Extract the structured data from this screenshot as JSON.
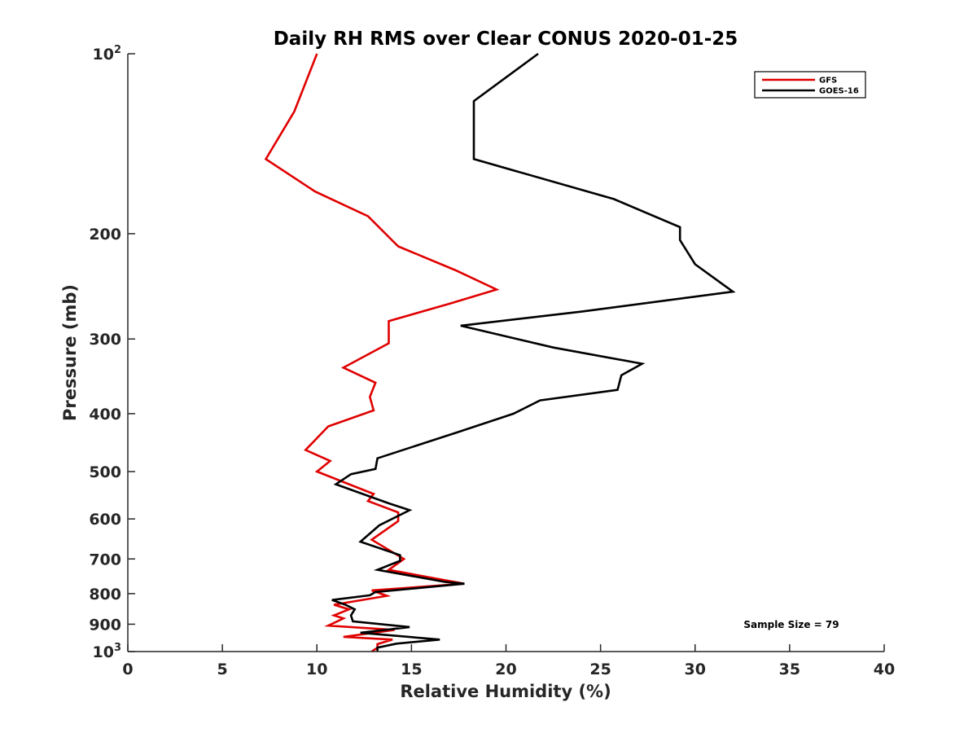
{
  "chart_data": {
    "type": "line",
    "title": "Daily RH RMS over Clear CONUS 2020-01-25",
    "xlabel": "Relative Humidity (%)",
    "ylabel": "Pressure (mb)",
    "xlim": [
      0,
      40
    ],
    "ylim": [
      100,
      1000
    ],
    "y_scale": "log",
    "y_reversed": true,
    "xticks": [
      0,
      5,
      10,
      15,
      20,
      25,
      30,
      35,
      40
    ],
    "yticks": [
      {
        "value": 100,
        "label": "10",
        "sup": "2"
      },
      {
        "value": 200,
        "label": "200",
        "sup": ""
      },
      {
        "value": 300,
        "label": "300",
        "sup": ""
      },
      {
        "value": 400,
        "label": "400",
        "sup": ""
      },
      {
        "value": 500,
        "label": "500",
        "sup": ""
      },
      {
        "value": 600,
        "label": "600",
        "sup": ""
      },
      {
        "value": 700,
        "label": "700",
        "sup": ""
      },
      {
        "value": 800,
        "label": "800",
        "sup": ""
      },
      {
        "value": 900,
        "label": "900",
        "sup": ""
      },
      {
        "value": 1000,
        "label": "10",
        "sup": "3"
      }
    ],
    "grid": false,
    "legend_position": "top-right",
    "annotation": "Sample Size = 79",
    "series": [
      {
        "name": "GFS",
        "color": "#e00000",
        "points": [
          [
            10.0,
            100
          ],
          [
            8.8,
            125
          ],
          [
            7.3,
            150
          ],
          [
            9.9,
            170
          ],
          [
            12.7,
            187
          ],
          [
            14.3,
            210
          ],
          [
            17.3,
            230
          ],
          [
            19.5,
            248
          ],
          [
            17.0,
            262
          ],
          [
            13.8,
            280
          ],
          [
            13.8,
            305
          ],
          [
            11.4,
            335
          ],
          [
            13.1,
            355
          ],
          [
            12.8,
            375
          ],
          [
            13.0,
            395
          ],
          [
            10.6,
            420
          ],
          [
            9.4,
            460
          ],
          [
            10.7,
            480
          ],
          [
            10.0,
            500
          ],
          [
            13.0,
            545
          ],
          [
            12.7,
            560
          ],
          [
            14.3,
            585
          ],
          [
            14.3,
            605
          ],
          [
            12.9,
            650
          ],
          [
            14.6,
            700
          ],
          [
            13.8,
            730
          ],
          [
            16.8,
            760
          ],
          [
            17.8,
            770
          ],
          [
            12.9,
            790
          ],
          [
            13.7,
            807
          ],
          [
            10.9,
            835
          ],
          [
            11.7,
            850
          ],
          [
            10.9,
            870
          ],
          [
            11.4,
            880
          ],
          [
            10.6,
            905
          ],
          [
            14.1,
            920
          ],
          [
            11.4,
            945
          ],
          [
            14.0,
            955
          ],
          [
            13.2,
            972
          ],
          [
            13.2,
            985
          ],
          [
            12.9,
            1000
          ]
        ]
      },
      {
        "name": "GOES-16",
        "color": "#000000",
        "points": [
          [
            21.7,
            100
          ],
          [
            18.3,
            120
          ],
          [
            18.3,
            150
          ],
          [
            25.7,
            175
          ],
          [
            29.2,
            195
          ],
          [
            29.2,
            205
          ],
          [
            30.0,
            225
          ],
          [
            32.0,
            250
          ],
          [
            24.0,
            270
          ],
          [
            17.6,
            285
          ],
          [
            22.5,
            310
          ],
          [
            27.2,
            330
          ],
          [
            26.1,
            345
          ],
          [
            25.9,
            365
          ],
          [
            21.8,
            380
          ],
          [
            20.4,
            400
          ],
          [
            17.4,
            430
          ],
          [
            13.2,
            475
          ],
          [
            13.1,
            495
          ],
          [
            11.8,
            505
          ],
          [
            11.0,
            525
          ],
          [
            13.8,
            565
          ],
          [
            14.9,
            580
          ],
          [
            13.3,
            615
          ],
          [
            12.3,
            655
          ],
          [
            14.4,
            690
          ],
          [
            14.4,
            705
          ],
          [
            13.2,
            730
          ],
          [
            16.8,
            765
          ],
          [
            17.8,
            770
          ],
          [
            13.1,
            795
          ],
          [
            12.8,
            805
          ],
          [
            10.8,
            820
          ],
          [
            11.5,
            835
          ],
          [
            12.0,
            850
          ],
          [
            11.8,
            870
          ],
          [
            11.9,
            890
          ],
          [
            14.9,
            910
          ],
          [
            12.3,
            930
          ],
          [
            16.5,
            955
          ],
          [
            14.2,
            970
          ],
          [
            13.2,
            985
          ],
          [
            13.2,
            1000
          ]
        ]
      }
    ]
  }
}
